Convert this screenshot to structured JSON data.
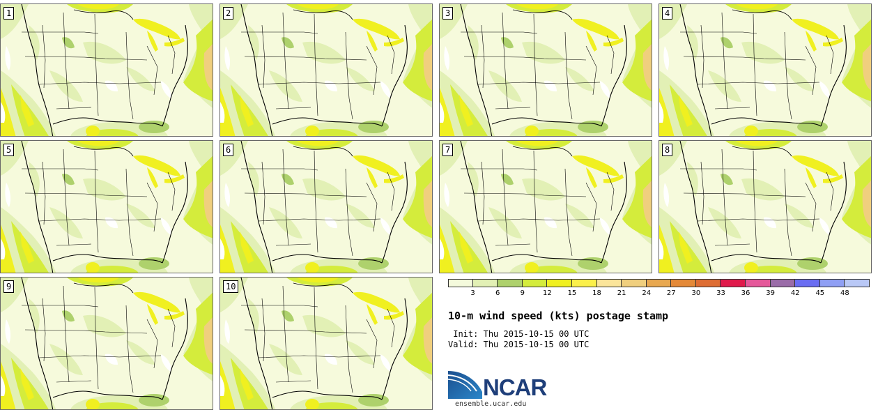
{
  "title": "10-m wind speed (kts) postage stamp",
  "init_label": " Init:",
  "init_time": "Thu 2015-10-15 00 UTC",
  "valid_label": "Valid:",
  "valid_time": "Thu 2015-10-15 00 UTC",
  "members": [
    "1",
    "2",
    "3",
    "4",
    "5",
    "6",
    "7",
    "8",
    "9",
    "10"
  ],
  "colorbar": {
    "units": "kts",
    "levels": [
      "3",
      "6",
      "9",
      "12",
      "15",
      "18",
      "21",
      "24",
      "27",
      "30",
      "33",
      "36",
      "39",
      "42",
      "45",
      "48"
    ],
    "colors": [
      "#f4fadc",
      "#e2f0b5",
      "#aed16c",
      "#d4ec3c",
      "#f0f020",
      "#fbf04a",
      "#fbe59b",
      "#f0cf7e",
      "#e8a850",
      "#e48938",
      "#de6d33",
      "#e01a4b",
      "#e5589a",
      "#9a6ca8",
      "#6a6df2",
      "#8f9ff4",
      "#b9c8f6"
    ]
  },
  "map_colors": {
    "land_light": "#f6fadc",
    "calm_white": "#ffffff",
    "light_green": "#e2f0b5",
    "green": "#aed16c",
    "yellow_green": "#d4ec3c",
    "yellow": "#f0f020",
    "orange": "#f0cf7e",
    "borders": "#000000"
  },
  "logo": {
    "name": "NCAR",
    "url": "ensemble.ucar.edu",
    "accent": "#1f6fb3"
  }
}
